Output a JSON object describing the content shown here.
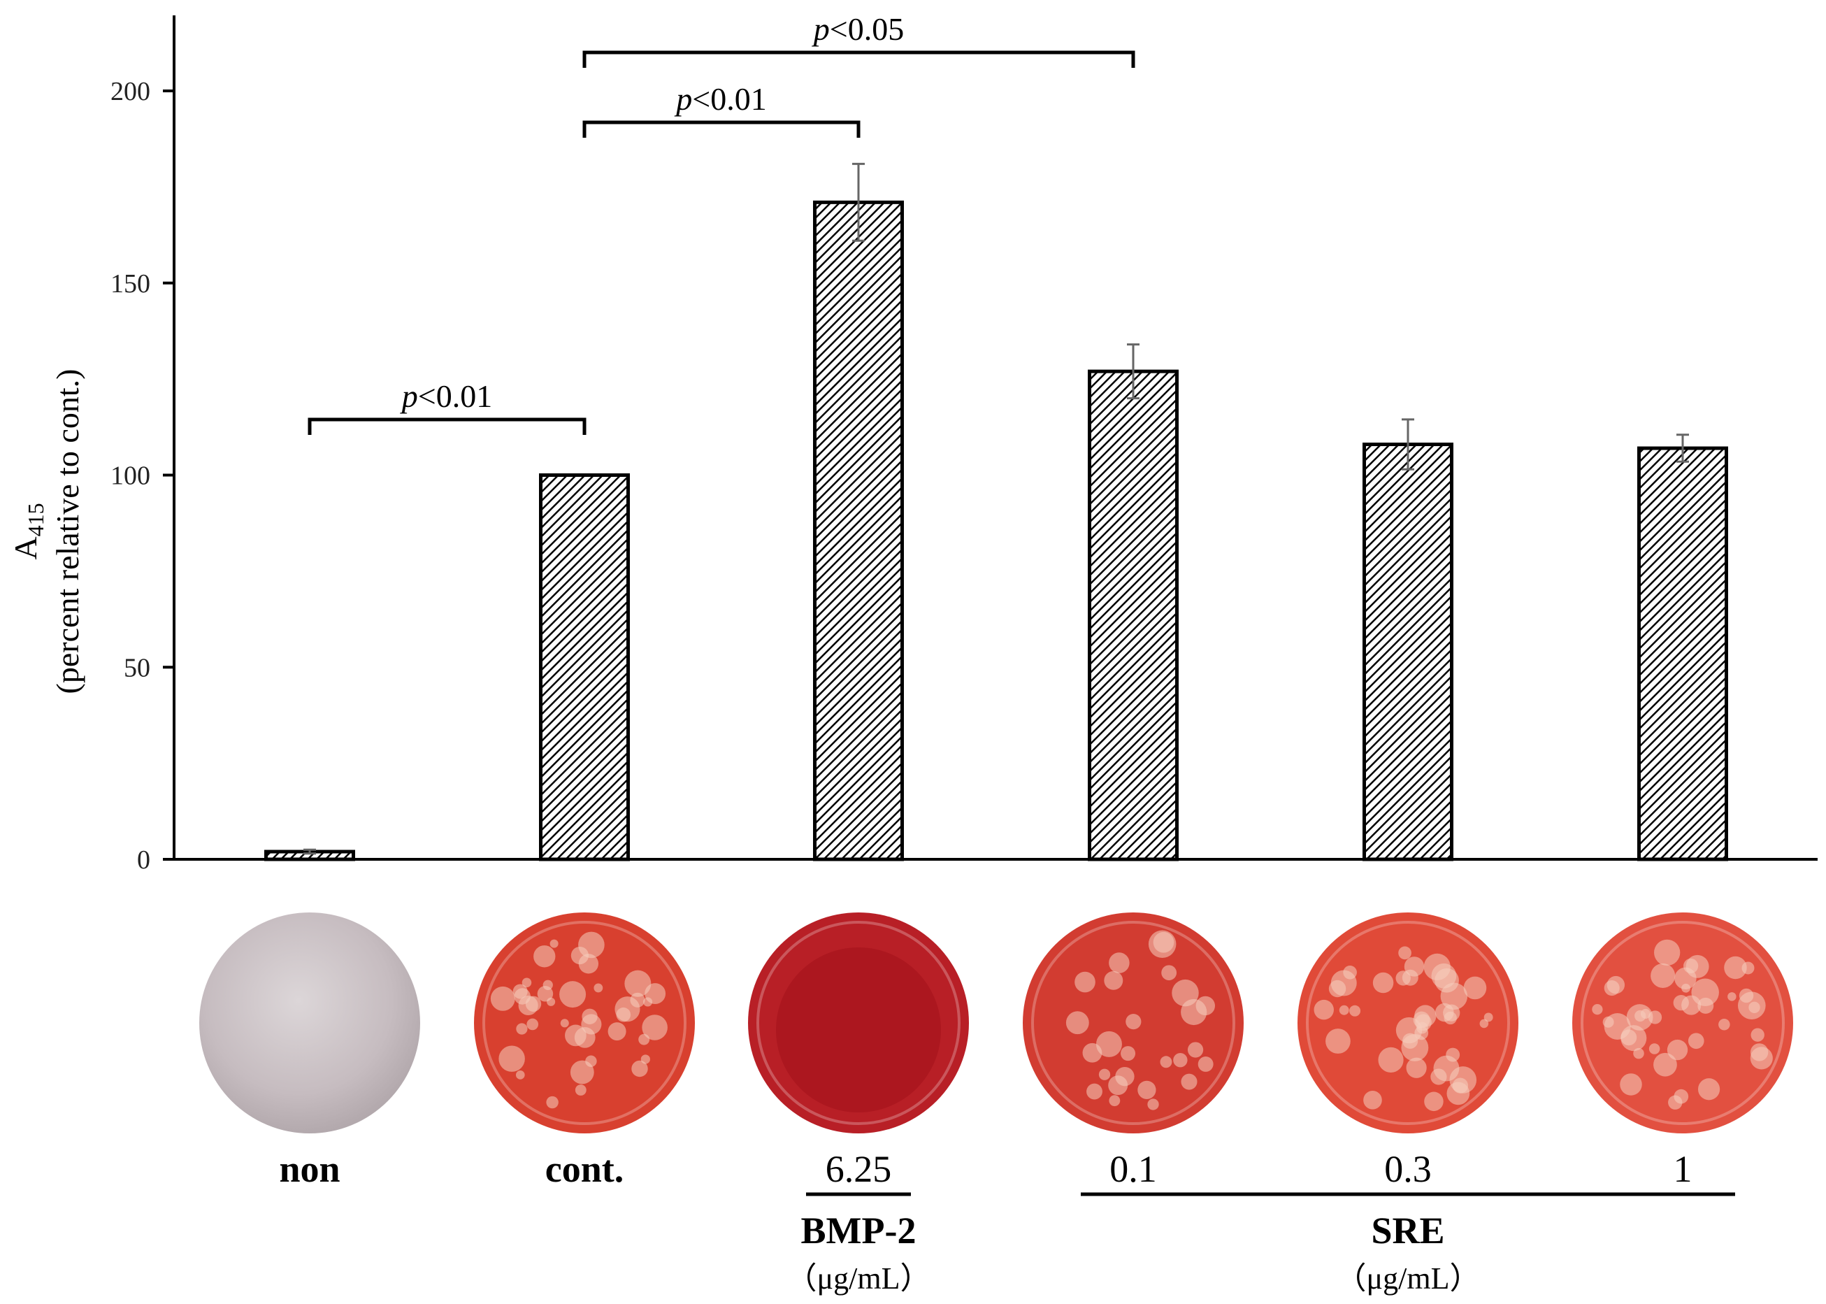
{
  "chart_data": {
    "type": "bar",
    "ylabel_main": "A",
    "ylabel_sub": "415",
    "ylabel_line2": "(percent relative to cont.)",
    "ylim": [
      0,
      200
    ],
    "yticks": [
      0,
      50,
      100,
      150,
      200
    ],
    "grid": false,
    "bar_pattern": "diagonal hatch",
    "bar_fill": "#ffffff",
    "bar_stroke": "#000000",
    "categories": [
      "non",
      "cont.",
      "6.25",
      "0.1",
      "0.3",
      "1"
    ],
    "values": [
      2,
      100,
      171,
      127,
      108,
      107
    ],
    "errors": [
      0.5,
      0,
      10,
      7,
      6.5,
      3.5
    ],
    "category_bold": [
      true,
      true,
      false,
      false,
      false,
      false
    ],
    "groups": [
      {
        "name": "BMP-2",
        "unit": "（μg/mL）",
        "from": 2,
        "to": 2
      },
      {
        "name": "SRE",
        "unit": "（μg/mL）",
        "from": 3,
        "to": 5
      }
    ],
    "significance": [
      {
        "from": 0,
        "to": 1,
        "p": "p",
        "label": "<0.01"
      },
      {
        "from": 1,
        "to": 2,
        "p": "p",
        "label": "<0.01"
      },
      {
        "from": 1,
        "to": 3,
        "p": "p",
        "label": "<0.05"
      }
    ],
    "well_images": [
      {
        "category": "non",
        "stain": "gray",
        "color": "#c9bfc3"
      },
      {
        "category": "cont.",
        "stain": "red mottled",
        "color": "#d8402f"
      },
      {
        "category": "6.25",
        "stain": "dark red",
        "color": "#b81f26"
      },
      {
        "category": "0.1",
        "stain": "red",
        "color": "#d23c31"
      },
      {
        "category": "0.3",
        "stain": "red mottled",
        "color": "#e04a38"
      },
      {
        "category": "1",
        "stain": "red mottled",
        "color": "#e25040"
      }
    ]
  }
}
